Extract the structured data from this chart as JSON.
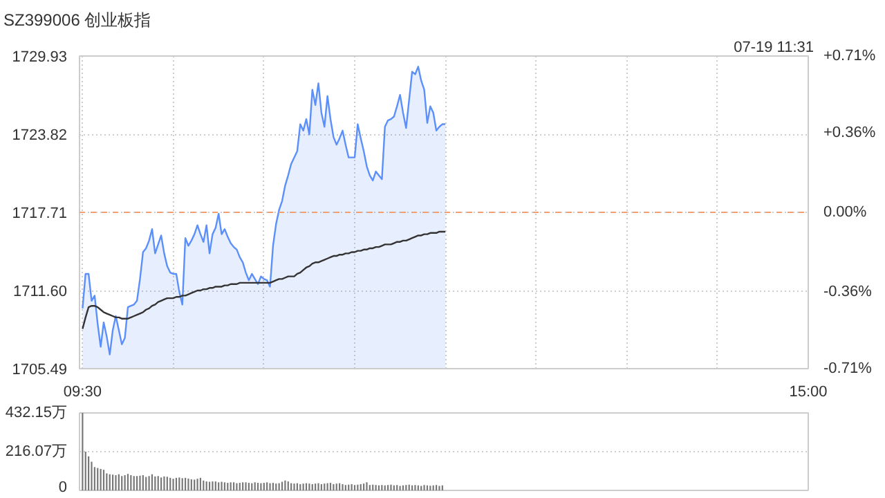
{
  "chart_data": [
    {
      "type": "area",
      "title": "SZ399006 创业板指",
      "annotations": [
        "07-19 11:31"
      ],
      "categories": [
        "09:30",
        null,
        null,
        null,
        null,
        null,
        null,
        null,
        null,
        null,
        null,
        null,
        null,
        null,
        null,
        null,
        null,
        null,
        null,
        null,
        null,
        null,
        null,
        null,
        null,
        null,
        null,
        null,
        null,
        null,
        null,
        null,
        null,
        null,
        null,
        null,
        null,
        null,
        null,
        null,
        null,
        null,
        null,
        null,
        null,
        null,
        null,
        null,
        null,
        null,
        null,
        null,
        null,
        null,
        null,
        null,
        null,
        null,
        null,
        null,
        null,
        null,
        null,
        null,
        null,
        null,
        null,
        null,
        null,
        null,
        null,
        null,
        null,
        null,
        null,
        null,
        null,
        null,
        null,
        null,
        null,
        null,
        null,
        null,
        null,
        null,
        null,
        null,
        null,
        null,
        null,
        null,
        null,
        null,
        null,
        null,
        null,
        null,
        null,
        null,
        null,
        null,
        null,
        null,
        null,
        null,
        null,
        null,
        null,
        null,
        null,
        null,
        null,
        null,
        null,
        null,
        null,
        null,
        null,
        null,
        null,
        null,
        null,
        null,
        null,
        null,
        null,
        null,
        null,
        null,
        null,
        null,
        null,
        null,
        null,
        null,
        null,
        null,
        null,
        null,
        null,
        null,
        null,
        null,
        null,
        null,
        null,
        null,
        null,
        null,
        null,
        null,
        null,
        null,
        null,
        null,
        null,
        null,
        null,
        null,
        null,
        null,
        null,
        null,
        null,
        null,
        null,
        null,
        null,
        null,
        null,
        null,
        null,
        null,
        null,
        null,
        null,
        null,
        null,
        null,
        null,
        null,
        null,
        null,
        null,
        null,
        null,
        null,
        null,
        null,
        null,
        null,
        null,
        null,
        null,
        null,
        null,
        null,
        null,
        null,
        null,
        null,
        null,
        null,
        null,
        null,
        null,
        null,
        null,
        null,
        null,
        null,
        null,
        null,
        null,
        null,
        null,
        null,
        null,
        null,
        null,
        null,
        null,
        null,
        null,
        null,
        null,
        null,
        null,
        null,
        null,
        null,
        null,
        null,
        null,
        null,
        null,
        null,
        null,
        null,
        "15:00"
      ],
      "ylim": [
        1705.49,
        1729.93
      ],
      "yticks": [
        1705.49,
        {
          "value": 1711.6,
          "label": "1711.60"
        },
        1717.71,
        1723.82,
        1729.93
      ],
      "y2lim": [
        -0.71,
        0.71
      ],
      "y2ticks": [
        {
          "value": -0.71,
          "label": "-0.71%"
        },
        {
          "value": -0.36,
          "label": "-0.36%"
        },
        {
          "value": 0,
          "label": "0.00%"
        },
        {
          "value": 0.36,
          "label": "+0.36%"
        },
        {
          "value": 0.71,
          "label": "+0.71%"
        }
      ],
      "grid": true,
      "ref_lines": [
        {
          "axis": "y",
          "value": 1717.71,
          "label": null,
          "color": "#f0a070",
          "line_style": "dashed"
        }
      ],
      "series": [
        {
          "type": "area",
          "color": "#5b8ff9",
          "values": [
            1710.2,
            1712.9,
            1712.9,
            1710.8,
            1711.2,
            1709.0,
            1707.2,
            1709.1,
            1708.0,
            1706.6,
            1708.5,
            1709.6,
            1708.5,
            1707.4,
            1707.9,
            1710.3,
            1710.4,
            1710.5,
            1710.8,
            1712.5,
            1714.6,
            1714.9,
            1715.5,
            1716.4,
            1714.5,
            1715.2,
            1715.9,
            1714.5,
            1713.5,
            1713.0,
            1712.9,
            1712.9,
            1711.5,
            1710.5,
            1715.7,
            1715.1,
            1715.5,
            1716.0,
            1716.7,
            1716.0,
            1715.4,
            1716.7,
            1714.5,
            1716.0,
            1716.5,
            1717.6,
            1716.0,
            1716.4,
            1715.8,
            1715.3,
            1715.0,
            1714.8,
            1714.2,
            1713.8,
            1713.0,
            1712.4,
            1712.9,
            1712.5,
            1712.1,
            1712.7,
            1712.5,
            1712.4,
            1711.9,
            1715.1,
            1716.8,
            1717.9,
            1718.6,
            1719.8,
            1720.6,
            1721.5,
            1722.0,
            1722.5,
            1724.6,
            1724.1,
            1725.0,
            1723.8,
            1727.3,
            1726.1,
            1727.8,
            1725.5,
            1724.4,
            1726.8,
            1725.0,
            1723.6,
            1723.0,
            1723.5,
            1724.1,
            1723.0,
            1722.0,
            1722.0,
            1722.0,
            1724.6,
            1723.5,
            1722.5,
            1721.3,
            1720.6,
            1720.2,
            1720.9,
            1720.6,
            1720.3,
            1724.4,
            1724.9,
            1725.0,
            1725.2,
            1726.0,
            1726.9,
            1725.5,
            1724.3,
            1726.5,
            1728.7,
            1728.5,
            1729.1,
            1728.0,
            1727.3,
            1724.7,
            1726.0,
            1725.5,
            1724.1,
            1724.4,
            1724.6,
            1724.6,
            null,
            null,
            null,
            null,
            null,
            null,
            null,
            null,
            null,
            null,
            null,
            null,
            null,
            null,
            null,
            null,
            null,
            null,
            null,
            null,
            null,
            null,
            null,
            null,
            null,
            null,
            null,
            null,
            null,
            null,
            null,
            null,
            null,
            null,
            null,
            null,
            null,
            null,
            null,
            null,
            null,
            null,
            null,
            null,
            null,
            null,
            null,
            null,
            null,
            null,
            null,
            null,
            null,
            null,
            null,
            null,
            null,
            null,
            null,
            null,
            null,
            null,
            null,
            null,
            null,
            null,
            null,
            null,
            null,
            null,
            null,
            null,
            null,
            null,
            null,
            null,
            null,
            null,
            null,
            null,
            null,
            null,
            null,
            null,
            null,
            null,
            null,
            null,
            null,
            null,
            null,
            null,
            null,
            null,
            null,
            null,
            null,
            null,
            null,
            null,
            null,
            null,
            null,
            null,
            null,
            null,
            null,
            null,
            null,
            null,
            null,
            null,
            null,
            null,
            null,
            null,
            null,
            null,
            null,
            null
          ]
        },
        {
          "type": "line",
          "color": "#333333",
          "values": [
            1708.6,
            1709.5,
            1710.3,
            1710.4,
            1710.4,
            1710.3,
            1710.1,
            1709.9,
            1709.8,
            1709.7,
            1709.6,
            1709.5,
            1709.5,
            1709.4,
            1709.4,
            1709.4,
            1709.5,
            1709.6,
            1709.7,
            1709.8,
            1709.9,
            1710.1,
            1710.2,
            1710.4,
            1710.5,
            1710.7,
            1710.8,
            1710.9,
            1711.0,
            1711.0,
            1711.0,
            1711.1,
            1711.1,
            1711.2,
            1711.2,
            1711.3,
            1711.4,
            1711.5,
            1711.6,
            1711.6,
            1711.7,
            1711.7,
            1711.8,
            1711.8,
            1711.9,
            1711.9,
            1711.9,
            1712.0,
            1712.0,
            1712.1,
            1712.1,
            1712.1,
            1712.2,
            1712.2,
            1712.2,
            1712.2,
            1712.2,
            1712.2,
            1712.2,
            1712.2,
            1712.2,
            1712.2,
            1712.2,
            1712.3,
            1712.4,
            1712.5,
            1712.5,
            1712.6,
            1712.7,
            1712.7,
            1712.7,
            1712.9,
            1713.0,
            1713.2,
            1713.4,
            1713.5,
            1713.7,
            1713.8,
            1713.8,
            1713.9,
            1714.0,
            1714.1,
            1714.2,
            1714.3,
            1714.3,
            1714.4,
            1714.4,
            1714.5,
            1714.5,
            1714.6,
            1714.6,
            1714.7,
            1714.7,
            1714.8,
            1714.8,
            1714.9,
            1714.9,
            1715.0,
            1715.0,
            1715.1,
            1715.2,
            1715.2,
            1715.2,
            1715.3,
            1715.4,
            1715.4,
            1715.5,
            1715.5,
            1715.6,
            1715.7,
            1715.8,
            1715.9,
            1715.9,
            1716.0,
            1716.0,
            1716.1,
            1716.1,
            1716.1,
            1716.2,
            1716.2,
            1716.2,
            null,
            null,
            null,
            null,
            null,
            null,
            null,
            null,
            null,
            null,
            null,
            null,
            null,
            null,
            null,
            null,
            null,
            null,
            null,
            null,
            null,
            null,
            null,
            null,
            null,
            null,
            null,
            null,
            null,
            null,
            null,
            null,
            null,
            null,
            null,
            null,
            null,
            null,
            null,
            null,
            null,
            null,
            null,
            null,
            null,
            null,
            null,
            null,
            null,
            null,
            null,
            null,
            null,
            null,
            null,
            null,
            null,
            null,
            null,
            null,
            null,
            null,
            null,
            null,
            null,
            null,
            null,
            null,
            null,
            null,
            null,
            null,
            null,
            null,
            null,
            null,
            null,
            null,
            null,
            null,
            null,
            null,
            null,
            null,
            null,
            null,
            null,
            null,
            null,
            null,
            null,
            null,
            null,
            null,
            null,
            null,
            null,
            null,
            null,
            null,
            null,
            null,
            null,
            null,
            null,
            null,
            null,
            null,
            null,
            null,
            null,
            null,
            null,
            null,
            null,
            null,
            null,
            null,
            null,
            null
          ]
        }
      ]
    },
    {
      "type": "bar",
      "tick_labels": "y",
      "categories": [
        null,
        null,
        null,
        null,
        null,
        null,
        null,
        null,
        null,
        null,
        null,
        null,
        null,
        null,
        null,
        null,
        null,
        null,
        null,
        null,
        null,
        null,
        null,
        null,
        null,
        null,
        null,
        null,
        null,
        null,
        null,
        null,
        null,
        null,
        null,
        null,
        null,
        null,
        null,
        null,
        null,
        null,
        null,
        null,
        null,
        null,
        null,
        null,
        null,
        null,
        null,
        null,
        null,
        null,
        null,
        null,
        null,
        null,
        null,
        null,
        null,
        null,
        null,
        null,
        null,
        null,
        null,
        null,
        null,
        null,
        null,
        null,
        null,
        null,
        null,
        null,
        null,
        null,
        null,
        null,
        null,
        null,
        null,
        null,
        null,
        null,
        null,
        null,
        null,
        null,
        null,
        null,
        null,
        null,
        null,
        null,
        null,
        null,
        null,
        null,
        null,
        null,
        null,
        null,
        null,
        null,
        null,
        null,
        null,
        null,
        null,
        null,
        null,
        null,
        null,
        null,
        null,
        null,
        null,
        null,
        null,
        null,
        null,
        null,
        null,
        null,
        null,
        null,
        null,
        null,
        null,
        null,
        null,
        null,
        null,
        null,
        null,
        null,
        null,
        null,
        null,
        null,
        null,
        null,
        null,
        null,
        null,
        null,
        null,
        null,
        null,
        null,
        null,
        null,
        null,
        null,
        null,
        null,
        null,
        null,
        null,
        null,
        null,
        null,
        null,
        null,
        null,
        null,
        null,
        null,
        null,
        null,
        null,
        null,
        null,
        null,
        null,
        null,
        null,
        null,
        null,
        null,
        null,
        null,
        null,
        null,
        null,
        null,
        null,
        null,
        null,
        null,
        null,
        null,
        null,
        null,
        null,
        null,
        null,
        null,
        null,
        null,
        null,
        null,
        null,
        null,
        null,
        null,
        null,
        null,
        null,
        null,
        null,
        null,
        null,
        null,
        null,
        null,
        null,
        null,
        null,
        null,
        null,
        null,
        null,
        null,
        null,
        null,
        null,
        null,
        null,
        null,
        null,
        null,
        null,
        null,
        null,
        null,
        null,
        null,
        null
      ],
      "ylim": [
        0,
        432.15
      ],
      "yticks": [
        {
          "value": 0,
          "label": "0"
        },
        {
          "value": 216.07,
          "label": "216.07万"
        },
        {
          "value": 432.15,
          "label": "432.15万"
        }
      ],
      "grid": "y",
      "color": "#777777",
      "values": [
        432,
        216,
        190,
        160,
        130,
        125,
        120,
        115,
        95,
        90,
        88,
        85,
        90,
        80,
        85,
        92,
        85,
        80,
        80,
        82,
        85,
        75,
        80,
        90,
        78,
        80,
        72,
        78,
        76,
        70,
        65,
        70,
        72,
        68,
        70,
        66,
        62,
        60,
        65,
        70,
        55,
        50,
        48,
        50,
        50,
        45,
        48,
        45,
        42,
        45,
        45,
        40,
        42,
        45,
        45,
        42,
        40,
        45,
        42,
        40,
        42,
        45,
        40,
        42,
        38,
        40,
        48,
        55,
        50,
        40,
        38,
        40,
        35,
        38,
        40,
        38,
        35,
        38,
        40,
        35,
        38,
        40,
        42,
        35,
        38,
        40,
        35,
        30,
        32,
        35,
        30,
        32,
        35,
        38,
        45,
        30,
        32,
        30,
        28,
        30,
        28,
        30,
        32,
        28,
        30,
        25,
        28,
        30,
        32,
        28,
        30,
        28,
        25,
        30,
        28,
        26,
        28,
        30,
        25,
        28,
        null,
        null,
        null,
        null,
        null,
        null,
        null,
        null,
        null,
        null,
        null,
        null,
        null,
        null,
        null,
        null,
        null,
        null,
        null,
        null,
        null,
        null,
        null,
        null,
        null,
        null,
        null,
        null,
        null,
        null,
        null,
        null,
        null,
        null,
        null,
        null,
        null,
        null,
        null,
        null,
        null,
        null,
        null,
        null,
        null,
        null,
        null,
        null,
        null,
        null,
        null,
        null,
        null,
        null,
        null,
        null,
        null,
        null,
        null,
        null,
        null,
        null,
        null,
        null,
        null,
        null,
        null,
        null,
        null,
        null,
        null,
        null,
        null,
        null,
        null,
        null,
        null,
        null,
        null,
        null,
        null,
        null,
        null,
        null,
        null,
        null,
        null,
        null,
        null,
        null,
        null,
        null,
        null,
        null,
        null,
        null,
        null,
        null,
        null,
        null,
        null,
        null,
        null,
        null,
        null,
        null,
        null,
        null,
        null,
        null,
        null,
        null,
        null,
        null,
        null,
        null,
        null,
        null,
        null,
        null,
        null
      ]
    }
  ]
}
